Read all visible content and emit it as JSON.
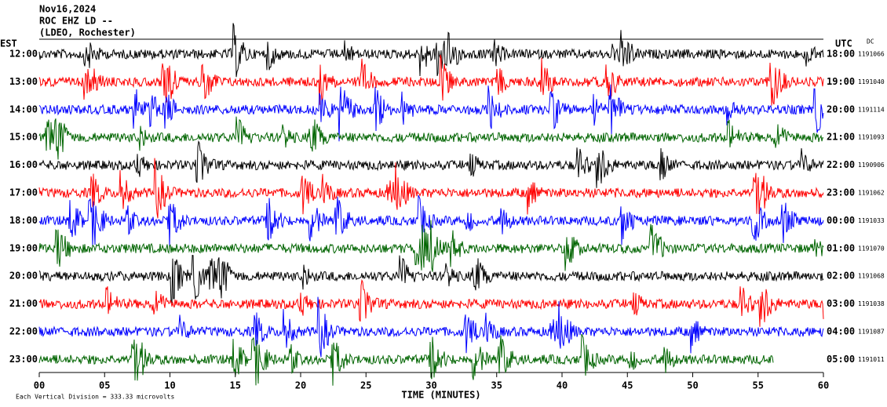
{
  "chart_data": {
    "type": "helicorder",
    "title": "Nov16,2024",
    "subtitle": "ROC EHZ LD --",
    "location": "(LDEO, Rochester)",
    "left_label": "EST",
    "right_label": "UTC",
    "offset_label": "DC",
    "xlabel": "TIME (MINUTES)",
    "scale_note": "Each Vertical Division =  333.33 microvolts",
    "xlim": [
      0,
      60
    ],
    "xticks": [
      {
        "value": 0,
        "label": "00"
      },
      {
        "value": 5,
        "label": "05"
      },
      10,
      15,
      20,
      25,
      30,
      35,
      40,
      45,
      50,
      55,
      60
    ],
    "rows_est": [
      "12:00",
      "13:00",
      "14:00",
      "15:00",
      "16:00",
      "17:00",
      "18:00",
      "19:00",
      "20:00",
      "21:00",
      "22:00",
      "23:00"
    ],
    "rows_utc": [
      "18:00",
      "19:00",
      "20:00",
      "21:00",
      "22:00",
      "23:00",
      "00:00",
      "01:00",
      "02:00",
      "03:00",
      "04:00",
      "05:00"
    ],
    "row_offsets": [
      "1191066",
      "1191040",
      "1191114",
      "1191093",
      "1190906",
      "1191062",
      "1191033",
      "1191070",
      "1191068",
      "1191038",
      "1191087",
      "1191011"
    ],
    "colors": [
      "#000000",
      "#ff0000",
      "#0000ff",
      "#006400"
    ]
  }
}
